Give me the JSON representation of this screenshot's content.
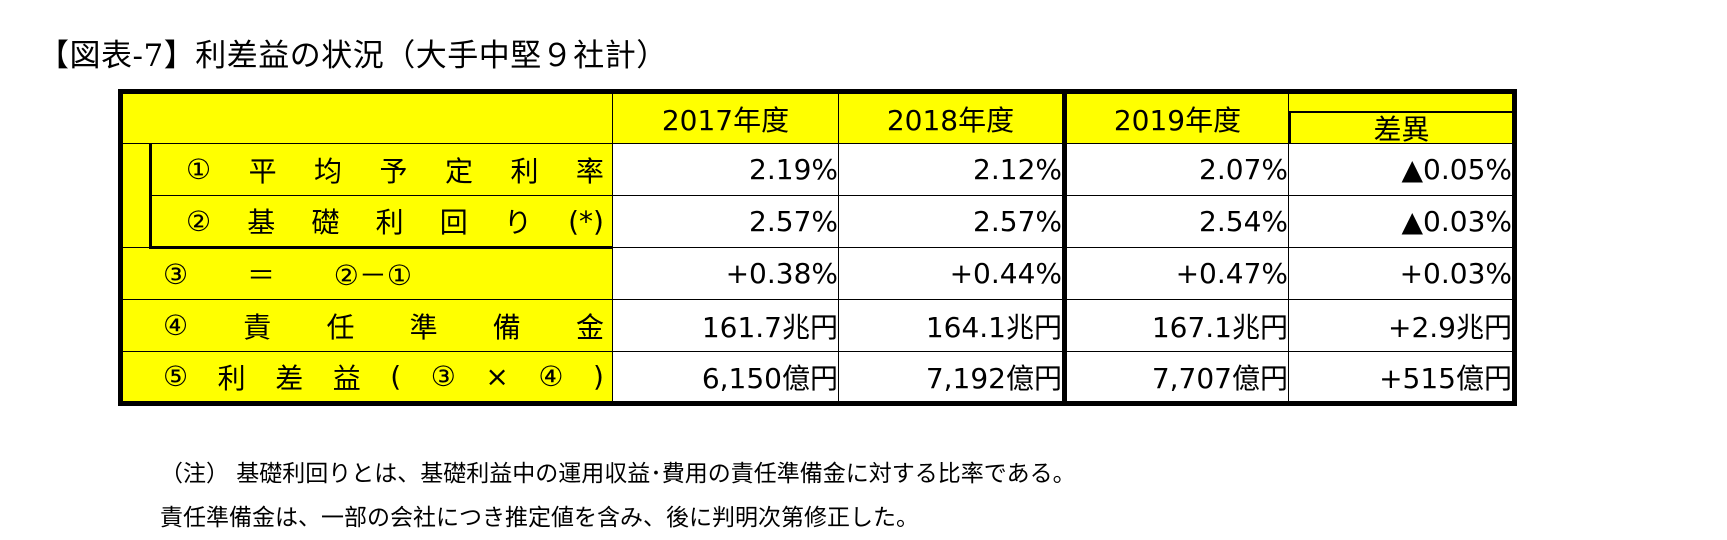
{
  "title": "【図表-7】利差益の状況（大手中堅９社計）",
  "headers": {
    "y2017": "2017年度",
    "y2018": "2018年度",
    "y2019": "2019年度",
    "diff": "差異"
  },
  "rows": [
    {
      "label_chars": [
        "①",
        "平",
        "均",
        "予",
        "定",
        "利",
        "率"
      ],
      "values": [
        "2.19%",
        "2.12%",
        "2.07%",
        "▲0.05%"
      ]
    },
    {
      "label_chars": [
        "②",
        "基",
        "礎",
        "利",
        "回",
        "り",
        "(*)"
      ],
      "values": [
        "2.57%",
        "2.57%",
        "2.54%",
        "▲0.03%"
      ]
    },
    {
      "label_chars": [
        "③",
        "＝",
        "②－①"
      ],
      "values": [
        "+0.38%",
        "+0.44%",
        "+0.47%",
        "+0.03%"
      ]
    },
    {
      "label_chars": [
        "④",
        "責",
        "任",
        "準",
        "備",
        "金"
      ],
      "values": [
        "161.7兆円",
        "164.1兆円",
        "167.1兆円",
        "+2.9兆円"
      ]
    },
    {
      "label_chars": [
        "⑤",
        "利",
        "差",
        "益",
        "(",
        "③",
        "×",
        "④",
        ")"
      ],
      "values": [
        "6,150億円",
        "7,192億円",
        "7,707億円",
        "+515億円"
      ]
    }
  ],
  "notes": [
    "（注）  基礎利回りとは、基礎利益中の運用収益･費用の責任準備金に対する比率である。",
    "責任準備金は、一部の会社につき推定値を含み、後に判明次第修正した。"
  ]
}
